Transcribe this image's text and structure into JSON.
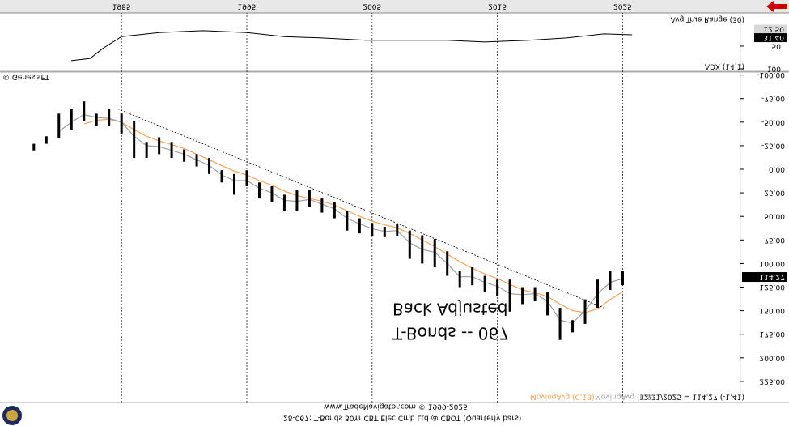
{
  "chart_data": [
    {
      "type": "hilo",
      "title": "T-Bonds -- 067",
      "subtitle": "Back Adjusted",
      "x": [
        1978,
        1979,
        1980,
        1981,
        1982,
        1983,
        1984,
        1985,
        1986,
        1987,
        1988,
        1989,
        1990,
        1991,
        1992,
        1993,
        1994,
        1995,
        1996,
        1997,
        1998,
        1999,
        2000,
        2001,
        2002,
        2003,
        2004,
        2005,
        2006,
        2007,
        2008,
        2009,
        2010,
        2011,
        2012,
        2013,
        2014,
        2015,
        2016,
        2017,
        2018,
        2019,
        2020,
        2021,
        2022,
        2023,
        2024,
        2025
      ],
      "high": [
        -20,
        -27,
        -33,
        -42,
        -51,
        -46,
        -46,
        -38,
        -12,
        -12,
        -16,
        -12,
        -8,
        -3,
        5,
        14,
        27,
        18,
        31,
        35,
        44,
        44,
        40,
        46,
        52,
        65,
        68,
        71,
        72,
        71,
        95,
        100,
        104,
        113,
        125,
        123,
        130,
        134,
        151,
        143,
        140,
        155,
        181,
        173,
        164,
        147,
        128,
        123
      ],
      "low": [
        -27,
        -35,
        -59,
        -64,
        -72,
        -59,
        -64,
        -59,
        -51,
        -29,
        -34,
        -29,
        -21,
        -16,
        -12,
        1,
        5,
        1,
        14,
        18,
        27,
        22,
        22,
        31,
        35,
        44,
        52,
        57,
        61,
        58,
        65,
        70,
        74,
        87,
        108,
        104,
        113,
        117,
        117,
        125,
        125,
        130,
        147,
        160,
        138,
        117,
        108,
        108
      ],
      "color": "#000000",
      "series": [
        {
          "name": "MovingAvg (C,18)",
          "color": "#f5a25a",
          "values": [
            null,
            null,
            null,
            null,
            -48,
            -52,
            -53,
            -50,
            -42,
            -35,
            -30,
            -26,
            -22,
            -16,
            -10,
            -4,
            2,
            6,
            12,
            17,
            23,
            28,
            31,
            34,
            38,
            44,
            50,
            55,
            59,
            62,
            68,
            75,
            82,
            90,
            98,
            105,
            111,
            116,
            122,
            128,
            131,
            135,
            143,
            150,
            152,
            148,
            138,
            130
          ]
        },
        {
          "name": "MovingAvg (C,8)",
          "color": "#a0a0a0",
          "values": [
            null,
            null,
            -40,
            -50,
            -58,
            -55,
            -54,
            -50,
            -35,
            -25,
            -24,
            -20,
            -16,
            -10,
            -4,
            6,
            12,
            12,
            20,
            25,
            33,
            34,
            32,
            37,
            42,
            52,
            58,
            63,
            66,
            65,
            78,
            85,
            88,
            100,
            114,
            114,
            120,
            124,
            132,
            133,
            132,
            140,
            160,
            163,
            150,
            132,
            120,
            116
          ]
        }
      ],
      "trendline": {
        "x": [
          1984.7,
          2023.5
        ],
        "values": [
          -64,
          147
        ]
      },
      "last_close": 114.27,
      "xlim": [
        1975.3,
        2034.4
      ],
      "xticks": [
        1985,
        1995,
        2005,
        2015,
        2025
      ],
      "ylim": [
        -103.1,
        247.4
      ],
      "yticks": [
        {
          "value": -100,
          "label": "-100.00"
        },
        {
          "value": -75,
          "label": "-75.00"
        },
        {
          "value": -50,
          "label": "-50.00"
        },
        {
          "value": -25,
          "label": "-25.00"
        },
        {
          "value": 0,
          "label": "0.00"
        },
        {
          "value": 25,
          "label": "25.00"
        },
        {
          "value": 50,
          "label": "50.00"
        },
        {
          "value": 75,
          "label": "75.00"
        },
        {
          "value": 100,
          "label": "100.00"
        },
        {
          "value": 125,
          "label": "125.00"
        },
        {
          "value": 150,
          "label": "150.00"
        },
        {
          "value": 175,
          "label": "175.00"
        },
        {
          "value": 200,
          "label": "200.00"
        },
        {
          "value": 225,
          "label": "225.00"
        }
      ],
      "grid": "x"
    },
    {
      "type": "line",
      "title": "Avg True Range (30)",
      "series": [
        {
          "name": "ADX (14,1)",
          "color": "#000000",
          "x": [
            1981,
            1982.5,
            1983.5,
            1985,
            1988,
            1991.5,
            1995,
            1998,
            2001,
            2004.5,
            2007.5,
            2011,
            2014,
            2017.5,
            2020.5,
            2023.5,
            2025.75
          ],
          "values": [
            82,
            77,
            55,
            29,
            20,
            16,
            20,
            29,
            32,
            37,
            37,
            37,
            41,
            37,
            32,
            23,
            25
          ]
        }
      ],
      "last_values": [
        12.5,
        31.4
      ],
      "last_value_labels": [
        "12.50",
        "31.40"
      ],
      "xlim": [
        1975.3,
        2034.4
      ],
      "ylim": [
        -21.4,
        105.4
      ],
      "yticks": [
        50,
        100
      ]
    }
  ],
  "footer": {
    "copyright": "© GenesisFT",
    "source": "www.TradeNavigator.com © 1999-2025",
    "caption": "28-067: T-Bonds 30Yr CBT Elec Cmb Ltd @ CBOT (Quarterly bars)",
    "status": "12/31/2025 = 114.27 (-1.41)"
  }
}
